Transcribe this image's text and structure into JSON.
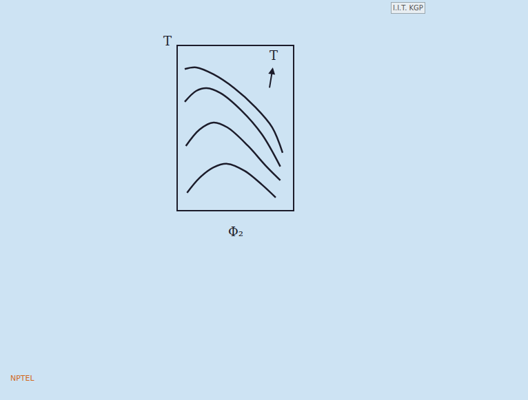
{
  "chart_data": {
    "type": "line",
    "x_label": "Φ₂",
    "y_label": "T",
    "header": "I.I.T. KGP",
    "logo": "NPTEL",
    "annotations": [
      {
        "text": "T",
        "x": 8.3,
        "y": 8.9,
        "arrow": "up"
      }
    ],
    "xlim": [
      0,
      10
    ],
    "ylim": [
      0,
      10
    ],
    "xticks": [],
    "yticks": [],
    "tick_labels": false,
    "grid": false,
    "color": "#1c1c2a",
    "series": [
      {
        "x": [
          0.6,
          1.6,
          3.1,
          4.9,
          6.7,
          8.2,
          9.1
        ],
        "values": [
          8.6,
          8.7,
          8.28,
          7.44,
          6.3,
          5.04,
          3.49
        ]
      },
      {
        "x": [
          0.6,
          1.6,
          2.5,
          3.7,
          5.5,
          7.3,
          8.9
        ],
        "values": [
          6.6,
          7.27,
          7.44,
          7.14,
          6.09,
          4.62,
          2.65
        ]
      },
      {
        "x": [
          0.7,
          1.9,
          3.1,
          4.3,
          6.1,
          7.6,
          8.9
        ],
        "values": [
          3.91,
          4.92,
          5.34,
          5.04,
          3.91,
          2.73,
          1.81
        ]
      },
      {
        "x": [
          0.8,
          1.9,
          3.1,
          4.3,
          5.8,
          7.3,
          8.5
        ],
        "values": [
          1.05,
          1.97,
          2.6,
          2.82,
          2.39,
          1.55,
          0.76
        ]
      }
    ]
  }
}
